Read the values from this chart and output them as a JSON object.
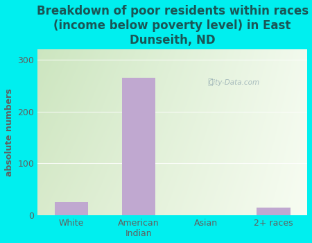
{
  "categories": [
    "White",
    "American\nIndian",
    "Asian",
    "2+ races"
  ],
  "values": [
    25,
    265,
    0,
    15
  ],
  "bar_color": "#c0a8d0",
  "title": "Breakdown of poor residents within races\n(income below poverty level) in East\nDunseith, ND",
  "ylabel": "absolute numbers",
  "ylim": [
    0,
    320
  ],
  "yticks": [
    0,
    100,
    200,
    300
  ],
  "background_color": "#00efef",
  "plot_bg_topleft": "#c8dbb0",
  "plot_bg_topright": "#e8f0e0",
  "plot_bg_bottomleft": "#d8e8c0",
  "plot_bg_bottomright": "#f8fdf5",
  "title_color": "#1a5555",
  "ylabel_color": "#606060",
  "tick_color": "#606060",
  "watermark": "City-Data.com",
  "title_fontsize": 12,
  "ylabel_fontsize": 9,
  "tick_fontsize": 9
}
